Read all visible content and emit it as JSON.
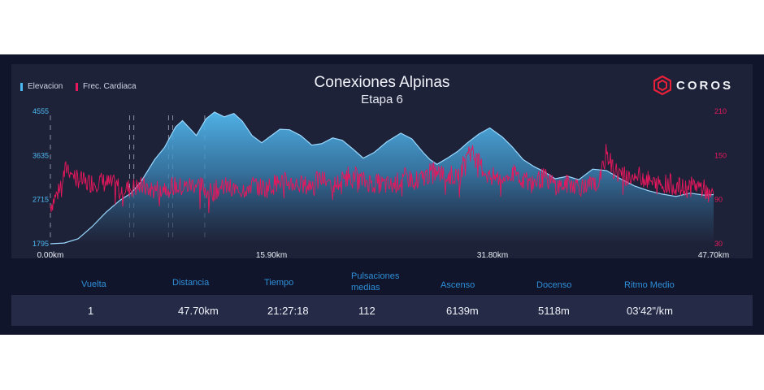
{
  "title": "Conexiones Alpinas",
  "subtitle": "Etapa 6",
  "logo": {
    "text": "COROS",
    "icon": "coros-hexagon-icon"
  },
  "legend": [
    {
      "label": "Elevacion",
      "color": "#4db8f0"
    },
    {
      "label": "Frec. Cardiaca",
      "color": "#e8175d"
    }
  ],
  "chart_data": {
    "type": "area",
    "x_label_unit": "km",
    "x_ticks": [
      "0.00km",
      "15.90km",
      "31.80km",
      "47.70km"
    ],
    "xlim": [
      0,
      47.7
    ],
    "y_left_ticks": [
      "4555",
      "3635",
      "2715",
      "1795"
    ],
    "y_left_lim": [
      1795,
      4555
    ],
    "y_right_ticks": [
      "210",
      "150",
      "90",
      "30"
    ],
    "y_right_lim": [
      30,
      210
    ],
    "series": [
      {
        "name": "Elevacion",
        "color": "#4db8f0",
        "x": [
          0,
          1,
          2,
          3,
          4,
          5,
          5.8,
          6.5,
          7.5,
          8.2,
          9,
          9.5,
          10.5,
          11.2,
          11.8,
          12.5,
          13.2,
          13.8,
          14.5,
          15.2,
          15.8,
          16.5,
          17.2,
          18,
          18.8,
          19.5,
          20.3,
          21,
          21.8,
          22.5,
          23.3,
          24.2,
          25.2,
          26,
          26.8,
          27.3,
          27.8,
          28.5,
          29.3,
          30,
          30.8,
          31.6,
          32.5,
          33.2,
          34,
          34.8,
          35.5,
          36.3,
          37.2,
          38,
          39,
          40,
          41,
          42,
          43,
          44,
          45,
          46,
          47,
          47.7
        ],
        "values": [
          1795,
          1810,
          1900,
          2150,
          2450,
          2700,
          2850,
          3080,
          3550,
          3800,
          4230,
          4360,
          4050,
          4400,
          4540,
          4440,
          4510,
          4350,
          4050,
          3900,
          4030,
          4180,
          4170,
          4050,
          3850,
          3880,
          4000,
          3950,
          3760,
          3580,
          3700,
          3920,
          4100,
          3980,
          3700,
          3550,
          3450,
          3570,
          3720,
          3900,
          4080,
          4210,
          4020,
          3820,
          3550,
          3400,
          3300,
          3150,
          3200,
          3130,
          3350,
          3320,
          3150,
          3000,
          2900,
          2830,
          2780,
          2850,
          2810,
          2820
        ]
      },
      {
        "name": "Frec. Cardiaca",
        "color": "#e8175d",
        "x": [
          0,
          0.5,
          1.2,
          1.8,
          2.5,
          3.5,
          4.5,
          5.5,
          6.5,
          7.5,
          8.5,
          9.5,
          10.5,
          11.5,
          12.5,
          13.5,
          14.5,
          15.5,
          16.5,
          17.5,
          18.5,
          19.5,
          20.5,
          21.5,
          22.5,
          23.5,
          24.5,
          25.5,
          26.5,
          27.5,
          28.5,
          29.5,
          30,
          30.5,
          31,
          31.5,
          32.5,
          33.5,
          34.5,
          35.5,
          36.5,
          37.5,
          38.5,
          39.5,
          40,
          40.5,
          41.5,
          42.5,
          43.5,
          44.5,
          45.5,
          46.5,
          47.7
        ],
        "values": [
          82,
          98,
          135,
          122,
          112,
          115,
          110,
          105,
          108,
          103,
          110,
          106,
          112,
          100,
          108,
          102,
          110,
          105,
          115,
          112,
          108,
          118,
          110,
          125,
          115,
          112,
          108,
          120,
          116,
          128,
          122,
          125,
          160,
          148,
          135,
          122,
          118,
          125,
          112,
          120,
          108,
          112,
          106,
          115,
          155,
          130,
          120,
          122,
          110,
          112,
          104,
          110,
          96
        ]
      }
    ],
    "grid": false,
    "legend_position": "top-left"
  },
  "stats": {
    "headers": [
      "Vuelta",
      "Distancia",
      "Tiempo",
      "Pulsaciones medias",
      "Ascenso",
      "Docenso",
      "Ritmo Medio"
    ],
    "values": [
      "1",
      "47.70km",
      "21:27:18",
      "112",
      "6139m",
      "5118m",
      "03'42\"/km"
    ]
  }
}
